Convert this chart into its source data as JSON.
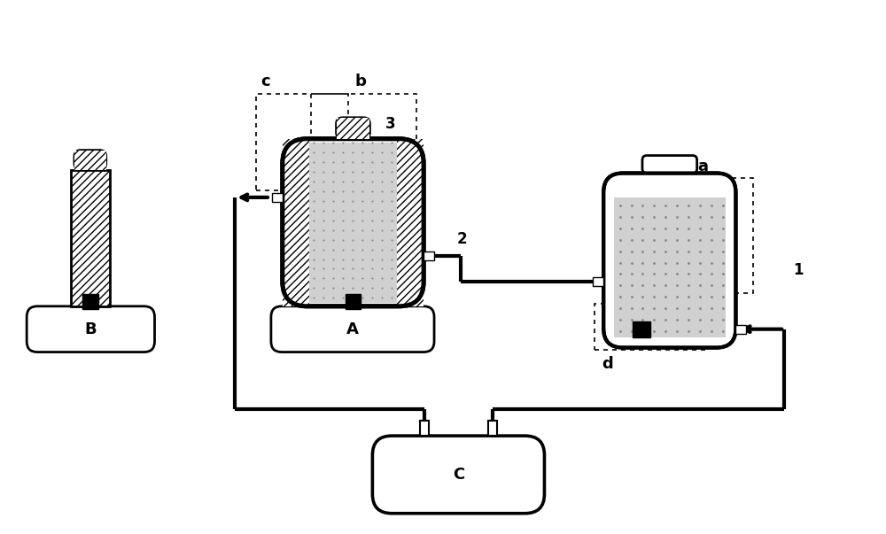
{
  "bg_color": "#ffffff",
  "line_color": "#000000",
  "dot_fill": "#d0d0d0",
  "label_A": "A",
  "label_B": "B",
  "label_C": "C",
  "label_a": "a",
  "label_b": "b",
  "label_c": "c",
  "label_d": "d",
  "label_1": "1",
  "label_2": "2",
  "label_3": "3"
}
